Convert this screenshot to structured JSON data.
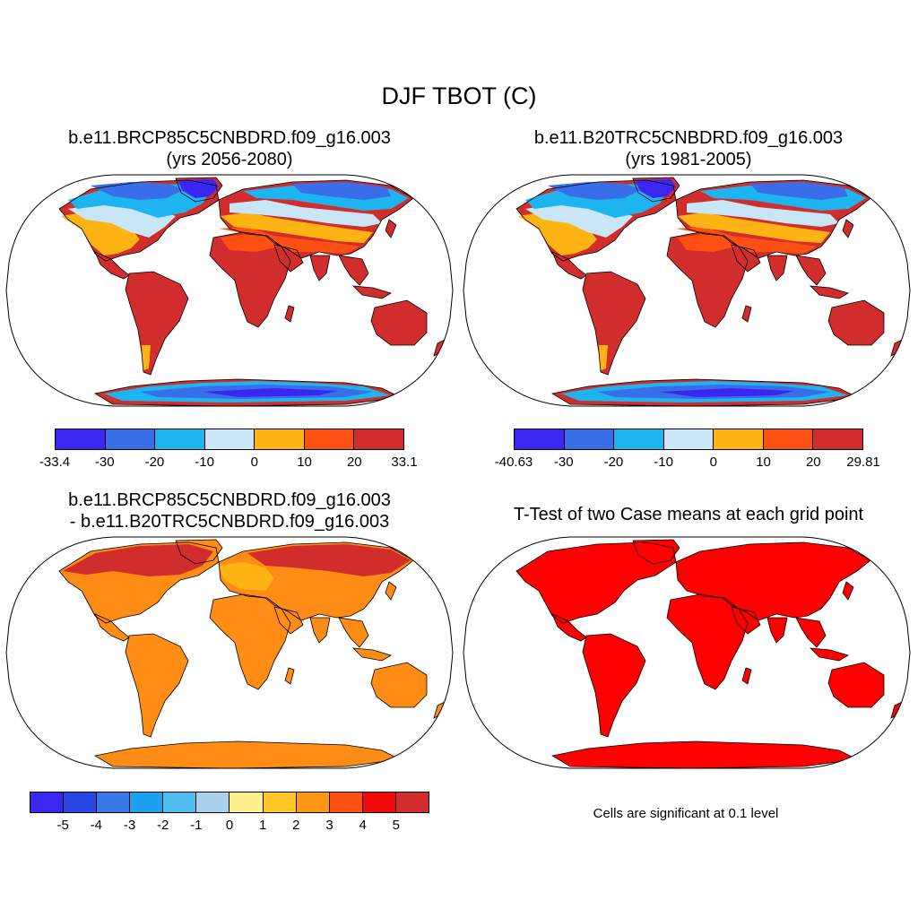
{
  "title": "DJF TBOT (C)",
  "panels": [
    {
      "title_line1": "b.e11.BRCP85C5CNBDRD.f09_g16.003",
      "title_line2": "(yrs 2056-2080)",
      "palette": {
        "polar": "#3b25f0",
        "cold": "#3a6ee8",
        "cool": "#1eb4f0",
        "mild": "#c8e6f5",
        "warm": "#ffb414",
        "hot": "#ff5014",
        "vhot": "#d22d2d",
        "land_base": "#d22d2d"
      },
      "colorbar": {
        "colors": [
          "#3b25f0",
          "#3a6ee8",
          "#1eb4f0",
          "#c8e6f5",
          "#ffb414",
          "#ff5014",
          "#d22d2d"
        ],
        "labels": [
          "-33.4",
          "-30",
          "-20",
          "-10",
          "0",
          "10",
          "20",
          "33.1"
        ]
      }
    },
    {
      "title_line1": "b.e11.B20TRC5CNBDRD.f09_g16.003",
      "title_line2": "(yrs 1981-2005)",
      "palette": {
        "polar": "#3b25f0",
        "cold": "#3a6ee8",
        "cool": "#1eb4f0",
        "mild": "#c8e6f5",
        "warm": "#ffb414",
        "hot": "#ff5014",
        "vhot": "#d22d2d",
        "land_base": "#d22d2d"
      },
      "colorbar": {
        "colors": [
          "#3b25f0",
          "#3a6ee8",
          "#1eb4f0",
          "#c8e6f5",
          "#ffb414",
          "#ff5014",
          "#d22d2d"
        ],
        "labels": [
          "-40.63",
          "-30",
          "-20",
          "-10",
          "0",
          "10",
          "20",
          "29.81"
        ]
      }
    },
    {
      "title_line1": "b.e11.BRCP85C5CNBDRD.f09_g16.003",
      "title_line2": "- b.e11.B20TRC5CNBDRD.f09_g16.003",
      "palette": {
        "polar": "#d22d2d",
        "cold": "#d22d2d",
        "cool": "#ff8c14",
        "mild": "#ff8c14",
        "warm": "#ff8c14",
        "hot": "#ffb414",
        "vhot": "#ff8c14",
        "land_base": "#ff8c14"
      },
      "colorbar": {
        "colors": [
          "#3b25f0",
          "#2846e6",
          "#3a78e6",
          "#1ea0f0",
          "#50bef0",
          "#aad2ee",
          "#fff08c",
          "#ffc828",
          "#ff9614",
          "#ff5014",
          "#f00a0a",
          "#d22d2d"
        ],
        "labels": [
          "-5",
          "-4",
          "-3",
          "-2",
          "-1",
          "0",
          "1",
          "2",
          "3",
          "4",
          "5"
        ]
      }
    },
    {
      "title_line1": "T-Test of two Case means at each grid point",
      "title_line2": "",
      "palette": {
        "polar": "#ff0000",
        "cold": "#ff0000",
        "cool": "#ff0000",
        "mild": "#ff0000",
        "warm": "#ff0000",
        "hot": "#ff0000",
        "vhot": "#ff0000",
        "land_base": "#ff0000"
      },
      "note": "Cells are significant at 0.1 level"
    }
  ]
}
